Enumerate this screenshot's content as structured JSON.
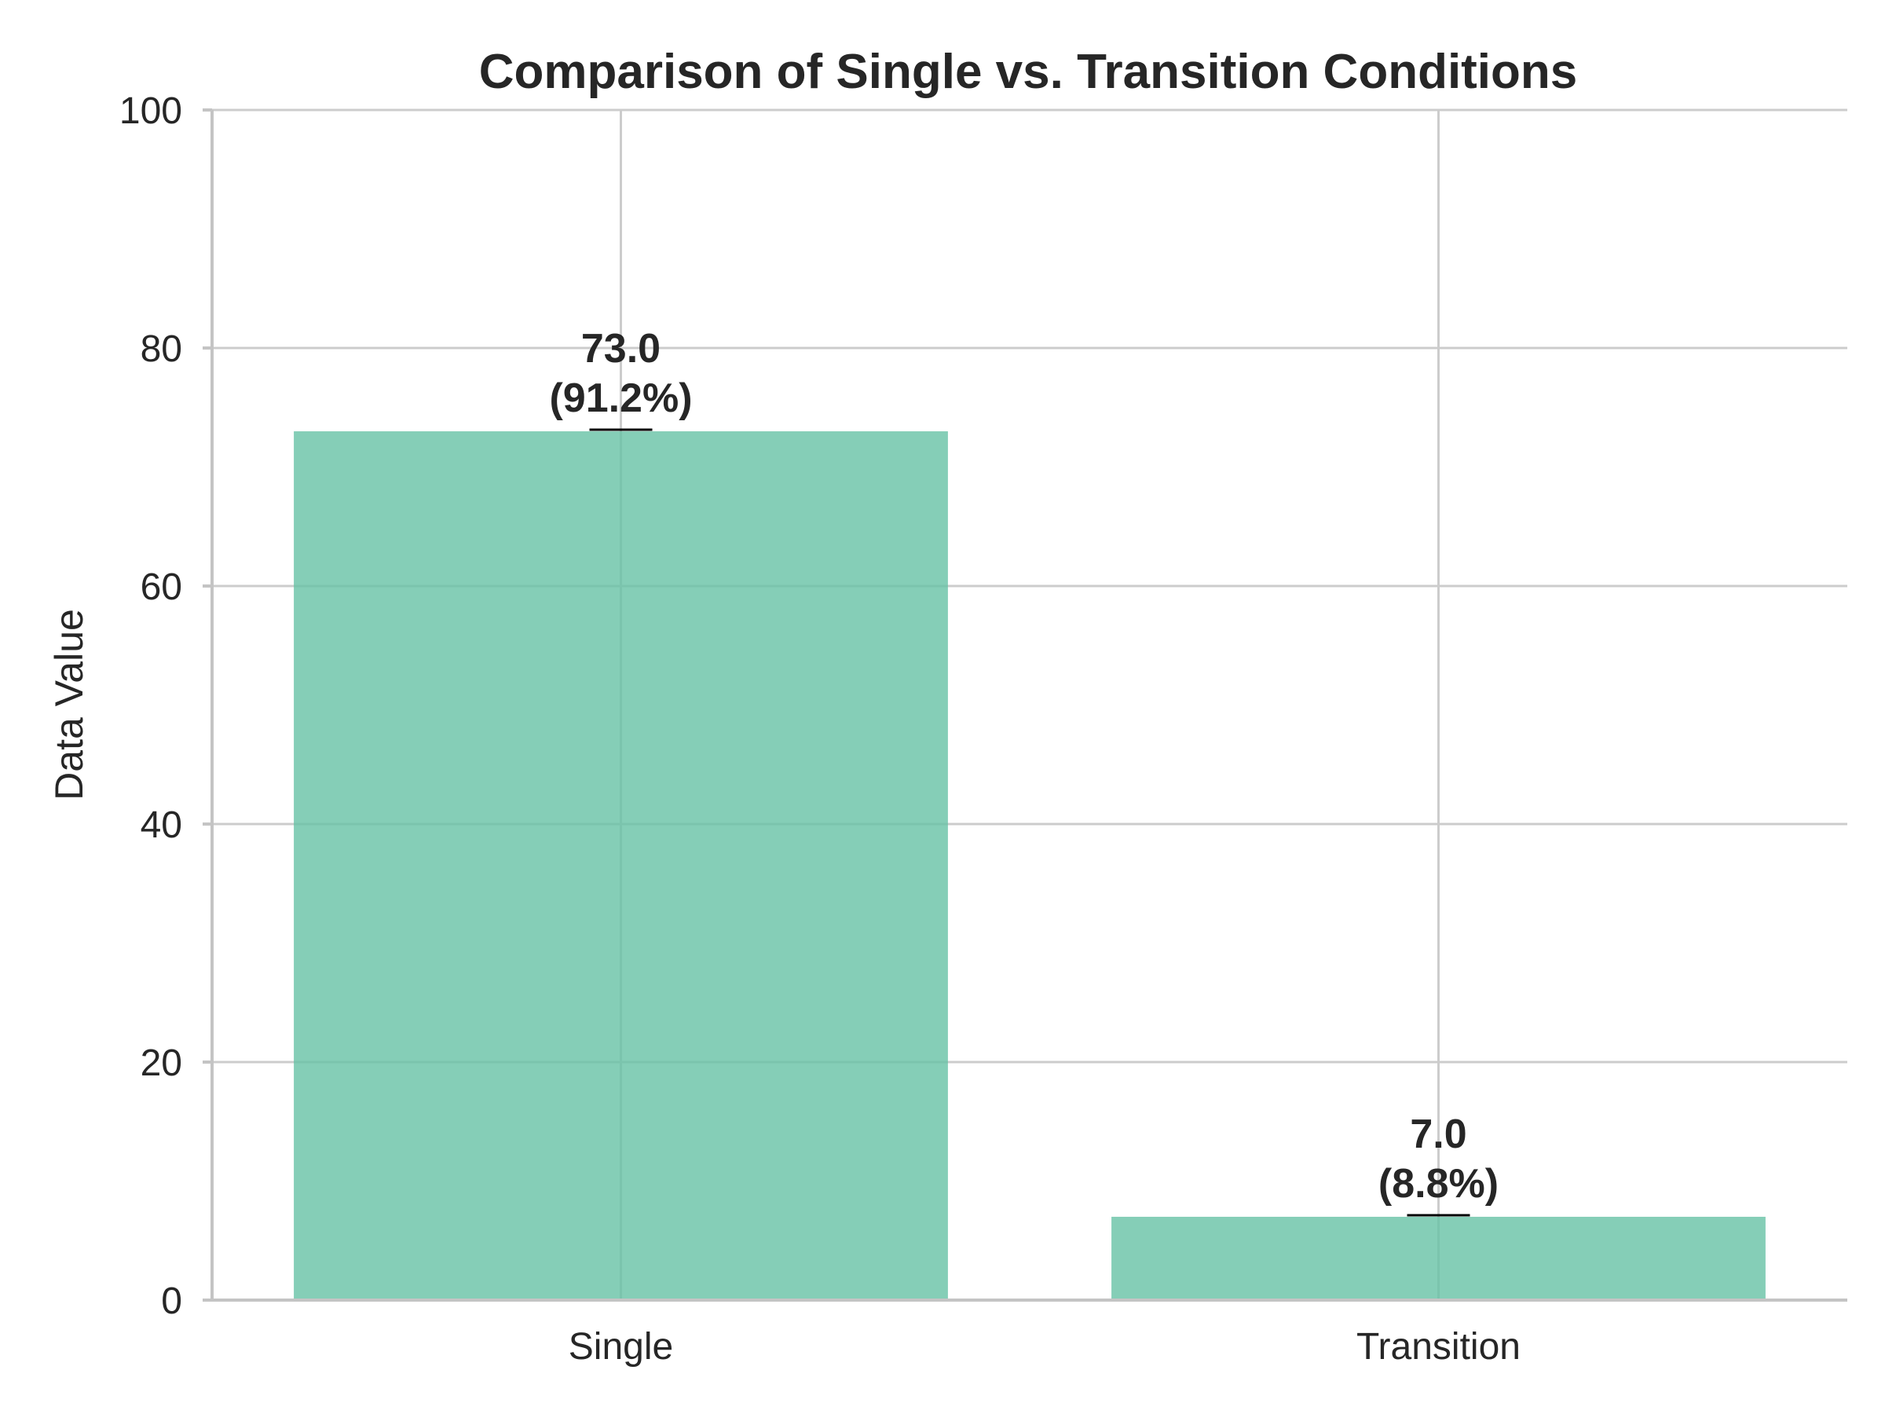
{
  "chart_data": {
    "type": "bar",
    "title": "Comparison of Single vs. Transition Conditions",
    "xlabel": "",
    "ylabel": "Data Value",
    "categories": [
      "Single",
      "Transition"
    ],
    "values": [
      73.0,
      7.0
    ],
    "value_labels": [
      "73.0",
      "7.0"
    ],
    "percent_labels": [
      "(91.2%)",
      "(8.8%)"
    ],
    "ylim": [
      0,
      100
    ],
    "yticks": [
      0,
      20,
      40,
      60,
      80,
      100
    ],
    "ytick_labels": [
      "0",
      "20",
      "40",
      "60",
      "80",
      "100"
    ],
    "grid": true,
    "legend": "none",
    "bar_color": "#66c2a5",
    "bar_opacity": 0.8,
    "error_bars": [
      0,
      0
    ]
  }
}
